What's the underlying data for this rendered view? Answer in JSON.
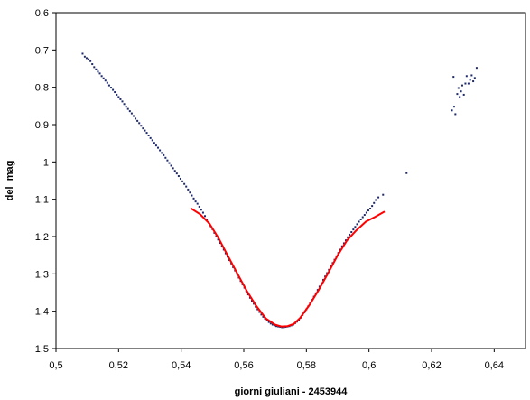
{
  "chart_data": {
    "type": "scatter",
    "title": "",
    "xlabel": "giorni giuliani - 2453944",
    "ylabel": "del_mag",
    "xlim": [
      0.5,
      0.65
    ],
    "ylim": [
      0.6,
      1.5
    ],
    "y_reversed": true,
    "grid": false,
    "legend": "none",
    "x_ticks": [
      {
        "value": 0.5,
        "label": "0,5"
      },
      {
        "value": 0.52,
        "label": "0,52"
      },
      {
        "value": 0.54,
        "label": "0,54"
      },
      {
        "value": 0.56,
        "label": "0,56"
      },
      {
        "value": 0.58,
        "label": "0,58"
      },
      {
        "value": 0.6,
        "label": "0,6"
      },
      {
        "value": 0.62,
        "label": "0,62"
      },
      {
        "value": 0.64,
        "label": "0,64"
      }
    ],
    "y_ticks": [
      {
        "value": 0.6,
        "label": "0,6"
      },
      {
        "value": 0.7,
        "label": "0,7"
      },
      {
        "value": 0.8,
        "label": "0,8"
      },
      {
        "value": 0.9,
        "label": "0,9"
      },
      {
        "value": 1.0,
        "label": "1"
      },
      {
        "value": 1.1,
        "label": "1,1"
      },
      {
        "value": 1.2,
        "label": "1,2"
      },
      {
        "value": 1.3,
        "label": "1,3"
      },
      {
        "value": 1.4,
        "label": "1,4"
      },
      {
        "value": 1.5,
        "label": "1,5"
      }
    ],
    "series": [
      {
        "kind": "points",
        "color": "#1f2a6b",
        "points": [
          [
            0.5085,
            0.71
          ],
          [
            0.5092,
            0.718
          ],
          [
            0.5098,
            0.722
          ],
          [
            0.5104,
            0.725
          ],
          [
            0.511,
            0.73
          ],
          [
            0.5116,
            0.738
          ],
          [
            0.5122,
            0.746
          ],
          [
            0.5128,
            0.752
          ],
          [
            0.5134,
            0.758
          ],
          [
            0.514,
            0.763
          ],
          [
            0.5146,
            0.77
          ],
          [
            0.5152,
            0.776
          ],
          [
            0.5158,
            0.782
          ],
          [
            0.5164,
            0.788
          ],
          [
            0.517,
            0.795
          ],
          [
            0.5176,
            0.801
          ],
          [
            0.5182,
            0.807
          ],
          [
            0.5188,
            0.813
          ],
          [
            0.5194,
            0.82
          ],
          [
            0.52,
            0.826
          ],
          [
            0.5206,
            0.832
          ],
          [
            0.5212,
            0.838
          ],
          [
            0.5218,
            0.845
          ],
          [
            0.5224,
            0.852
          ],
          [
            0.523,
            0.858
          ],
          [
            0.5236,
            0.864
          ],
          [
            0.5242,
            0.87
          ],
          [
            0.5248,
            0.877
          ],
          [
            0.5254,
            0.884
          ],
          [
            0.526,
            0.89
          ],
          [
            0.5266,
            0.896
          ],
          [
            0.5272,
            0.903
          ],
          [
            0.5278,
            0.91
          ],
          [
            0.5284,
            0.916
          ],
          [
            0.529,
            0.922
          ],
          [
            0.5296,
            0.929
          ],
          [
            0.5302,
            0.936
          ],
          [
            0.5308,
            0.942
          ],
          [
            0.5314,
            0.949
          ],
          [
            0.532,
            0.956
          ],
          [
            0.5326,
            0.962
          ],
          [
            0.5332,
            0.969
          ],
          [
            0.5338,
            0.976
          ],
          [
            0.5344,
            0.982
          ],
          [
            0.535,
            0.989
          ],
          [
            0.5356,
            0.996
          ],
          [
            0.5362,
            1.003
          ],
          [
            0.5368,
            1.01
          ],
          [
            0.5374,
            1.017
          ],
          [
            0.538,
            1.024
          ],
          [
            0.5386,
            1.031
          ],
          [
            0.5392,
            1.038
          ],
          [
            0.5398,
            1.045
          ],
          [
            0.5404,
            1.052
          ],
          [
            0.541,
            1.059
          ],
          [
            0.5416,
            1.066
          ],
          [
            0.5422,
            1.074
          ],
          [
            0.5428,
            1.082
          ],
          [
            0.5434,
            1.09
          ],
          [
            0.544,
            1.098
          ],
          [
            0.5446,
            1.106
          ],
          [
            0.5452,
            1.112
          ],
          [
            0.5458,
            1.12
          ],
          [
            0.5464,
            1.128
          ],
          [
            0.547,
            1.136
          ],
          [
            0.5476,
            1.145
          ],
          [
            0.5482,
            1.154
          ],
          [
            0.5488,
            1.163
          ],
          [
            0.5494,
            1.172
          ],
          [
            0.55,
            1.18
          ],
          [
            0.5506,
            1.19
          ],
          [
            0.5512,
            1.199
          ],
          [
            0.5518,
            1.208
          ],
          [
            0.5524,
            1.217
          ],
          [
            0.553,
            1.226
          ],
          [
            0.5536,
            1.235
          ],
          [
            0.5542,
            1.245
          ],
          [
            0.5548,
            1.254
          ],
          [
            0.5554,
            1.263
          ],
          [
            0.556,
            1.272
          ],
          [
            0.5566,
            1.282
          ],
          [
            0.5572,
            1.291
          ],
          [
            0.5578,
            1.3
          ],
          [
            0.5584,
            1.31
          ],
          [
            0.559,
            1.319
          ],
          [
            0.5596,
            1.328
          ],
          [
            0.5602,
            1.337
          ],
          [
            0.5608,
            1.346
          ],
          [
            0.5614,
            1.355
          ],
          [
            0.562,
            1.364
          ],
          [
            0.5626,
            1.372
          ],
          [
            0.5632,
            1.38
          ],
          [
            0.5638,
            1.388
          ],
          [
            0.5644,
            1.395
          ],
          [
            0.565,
            1.402
          ],
          [
            0.5656,
            1.409
          ],
          [
            0.5662,
            1.415
          ],
          [
            0.5668,
            1.42
          ],
          [
            0.5674,
            1.425
          ],
          [
            0.568,
            1.429
          ],
          [
            0.5686,
            1.433
          ],
          [
            0.5692,
            1.436
          ],
          [
            0.5698,
            1.438
          ],
          [
            0.5704,
            1.44
          ],
          [
            0.571,
            1.441
          ],
          [
            0.5716,
            1.442
          ],
          [
            0.5722,
            1.443
          ],
          [
            0.5728,
            1.443
          ],
          [
            0.5734,
            1.442
          ],
          [
            0.574,
            1.441
          ],
          [
            0.5746,
            1.44
          ],
          [
            0.5752,
            1.438
          ],
          [
            0.5758,
            1.436
          ],
          [
            0.5764,
            1.432
          ],
          [
            0.577,
            1.428
          ],
          [
            0.5776,
            1.423
          ],
          [
            0.5782,
            1.417
          ],
          [
            0.5788,
            1.41
          ],
          [
            0.5794,
            1.403
          ],
          [
            0.58,
            1.395
          ],
          [
            0.5806,
            1.387
          ],
          [
            0.5812,
            1.378
          ],
          [
            0.5818,
            1.37
          ],
          [
            0.5824,
            1.361
          ],
          [
            0.583,
            1.352
          ],
          [
            0.5836,
            1.343
          ],
          [
            0.5842,
            1.334
          ],
          [
            0.5848,
            1.325
          ],
          [
            0.5854,
            1.316
          ],
          [
            0.586,
            1.307
          ],
          [
            0.5866,
            1.298
          ],
          [
            0.5872,
            1.289
          ],
          [
            0.5878,
            1.28
          ],
          [
            0.5884,
            1.271
          ],
          [
            0.589,
            1.262
          ],
          [
            0.5896,
            1.253
          ],
          [
            0.5902,
            1.244
          ],
          [
            0.5908,
            1.235
          ],
          [
            0.5914,
            1.226
          ],
          [
            0.592,
            1.218
          ],
          [
            0.5926,
            1.21
          ],
          [
            0.5932,
            1.202
          ],
          [
            0.5938,
            1.195
          ],
          [
            0.5944,
            1.188
          ],
          [
            0.595,
            1.181
          ],
          [
            0.5956,
            1.174
          ],
          [
            0.5962,
            1.167
          ],
          [
            0.5968,
            1.16
          ],
          [
            0.5974,
            1.154
          ],
          [
            0.598,
            1.148
          ],
          [
            0.5986,
            1.142
          ],
          [
            0.5992,
            1.136
          ],
          [
            0.5998,
            1.13
          ],
          [
            0.6004,
            1.125
          ],
          [
            0.601,
            1.118
          ],
          [
            0.6016,
            1.11
          ],
          [
            0.6022,
            1.102
          ],
          [
            0.603,
            1.095
          ],
          [
            0.6045,
            1.088
          ],
          [
            0.612,
            1.03
          ],
          [
            0.6265,
            0.862
          ],
          [
            0.6272,
            0.852
          ],
          [
            0.6276,
            0.872
          ],
          [
            0.6282,
            0.818
          ],
          [
            0.6286,
            0.802
          ],
          [
            0.629,
            0.826
          ],
          [
            0.6294,
            0.811
          ],
          [
            0.6298,
            0.795
          ],
          [
            0.6303,
            0.82
          ],
          [
            0.6308,
            0.79
          ],
          [
            0.6312,
            0.77
          ],
          [
            0.6318,
            0.79
          ],
          [
            0.6323,
            0.78
          ],
          [
            0.6328,
            0.768
          ],
          [
            0.6333,
            0.784
          ],
          [
            0.6338,
            0.775
          ],
          [
            0.6344,
            0.748
          ],
          [
            0.627,
            0.772
          ]
        ]
      },
      {
        "kind": "line",
        "color": "#ff0000",
        "points": [
          [
            0.543,
            1.124
          ],
          [
            0.546,
            1.14
          ],
          [
            0.549,
            1.165
          ],
          [
            0.552,
            1.205
          ],
          [
            0.555,
            1.253
          ],
          [
            0.558,
            1.3
          ],
          [
            0.561,
            1.346
          ],
          [
            0.564,
            1.386
          ],
          [
            0.567,
            1.419
          ],
          [
            0.57,
            1.436
          ],
          [
            0.572,
            1.441
          ],
          [
            0.574,
            1.44
          ],
          [
            0.576,
            1.434
          ],
          [
            0.578,
            1.418
          ],
          [
            0.581,
            1.383
          ],
          [
            0.584,
            1.342
          ],
          [
            0.587,
            1.297
          ],
          [
            0.59,
            1.25
          ],
          [
            0.593,
            1.21
          ],
          [
            0.596,
            1.183
          ],
          [
            0.599,
            1.16
          ],
          [
            0.602,
            1.147
          ],
          [
            0.605,
            1.133
          ]
        ]
      }
    ]
  }
}
